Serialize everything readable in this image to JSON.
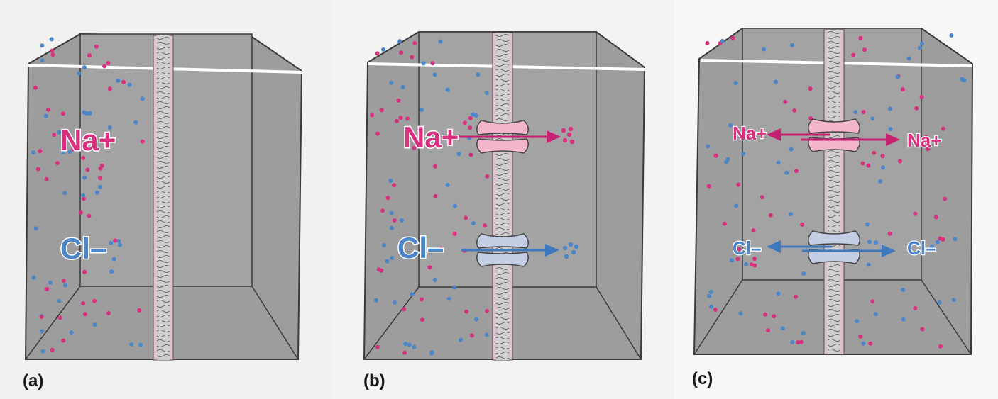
{
  "colors": {
    "na": "#d8307f",
    "cl": "#4a86c8",
    "tank": "#9d9d9d",
    "edge": "#3a3a3a",
    "rim": "#ffffff",
    "membrane": "#dcc3d0",
    "channel_na": "#f2b5cc",
    "channel_cl": "#c3cde4",
    "label_outline": "#ffffff"
  },
  "panels": [
    {
      "id": "a",
      "caption": "(a)",
      "na_label": "Na+",
      "cl_label": "Cl–"
    },
    {
      "id": "b",
      "caption": "(b)",
      "na_label": "Na+",
      "cl_label": "Cl–"
    },
    {
      "id": "c",
      "caption": "(c)",
      "na_label_left": "Na+",
      "na_label_right": "Na+",
      "cl_label_left": "Cl–",
      "cl_label_right": "Cl–"
    }
  ]
}
